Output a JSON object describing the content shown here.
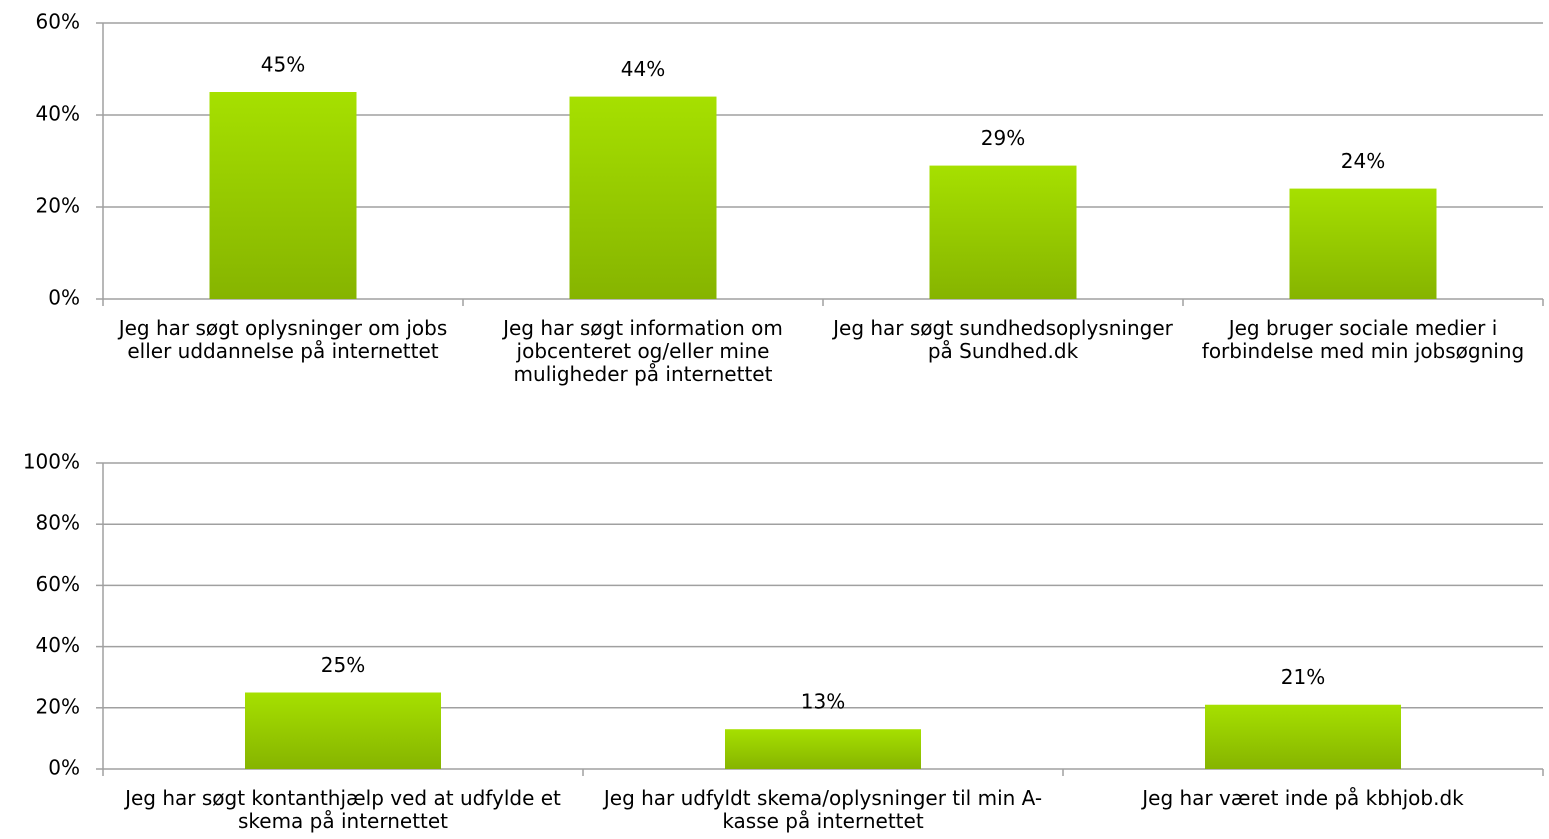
{
  "chart_data": [
    {
      "type": "bar",
      "categories": [
        "Jeg har søgt oplysninger om jobs eller uddannelse på internettet",
        "Jeg har søgt information om jobcenteret og/eller mine muligheder på internettet",
        "Jeg har søgt sundhedsoplysninger på Sundhed.dk",
        "Jeg bruger sociale medier i forbindelse med min jobsøgning"
      ],
      "values": [
        45,
        44,
        29,
        24
      ],
      "value_labels": [
        "45%",
        "44%",
        "29%",
        "24%"
      ],
      "color": "#a6e000",
      "ylim": [
        0,
        60
      ],
      "yticks": [
        {
          "value": 0,
          "label": "0%"
        },
        {
          "value": 20,
          "label": "20%"
        },
        {
          "value": 40,
          "label": "40%"
        },
        {
          "value": 60,
          "label": "60%"
        }
      ],
      "grid": true
    },
    {
      "type": "bar",
      "categories": [
        "Jeg har søgt kontanthjælp ved at udfylde et skema på internettet",
        "Jeg har udfyldt skema/oplysninger til min A-kasse på internettet",
        "Jeg har været inde på kbhjob.dk"
      ],
      "values": [
        25,
        13,
        21
      ],
      "value_labels": [
        "25%",
        "13%",
        "21%"
      ],
      "color": "#a6e000",
      "ylim": [
        0,
        100
      ],
      "yticks": [
        {
          "value": 0,
          "label": "0%"
        },
        {
          "value": 20,
          "label": "20%"
        },
        {
          "value": 40,
          "label": "40%"
        },
        {
          "value": 60,
          "label": "60%"
        },
        {
          "value": 80,
          "label": "80%"
        },
        {
          "value": 100,
          "label": "100%"
        }
      ],
      "grid": true
    }
  ]
}
